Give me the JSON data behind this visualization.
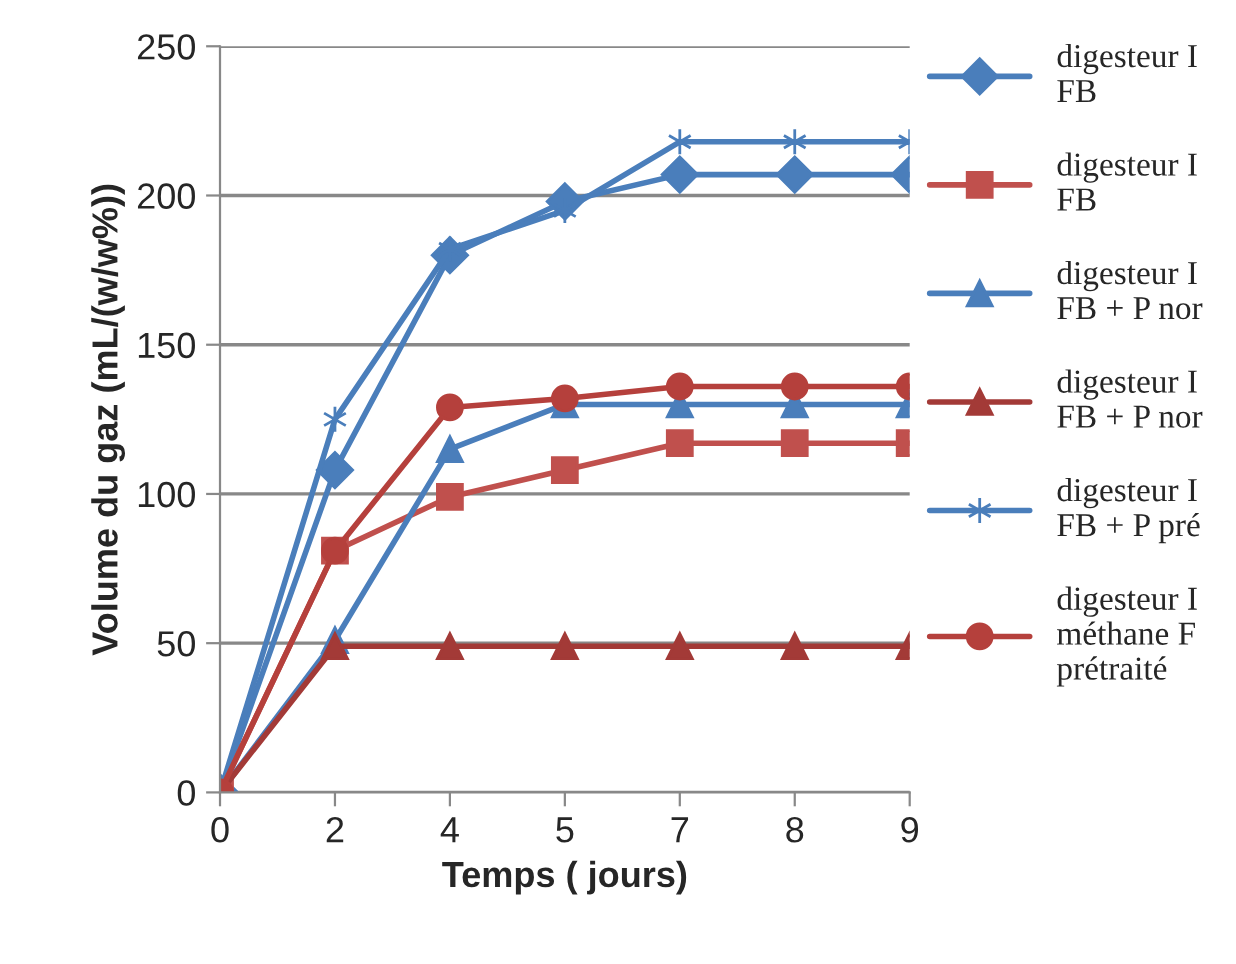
{
  "chart_data": {
    "type": "line",
    "xlabel": "Temps ( jours)",
    "ylabel": "Volume du gaz (mL/(w/w%))",
    "categories": [
      "0",
      "2",
      "4",
      "5",
      "7",
      "8",
      "9"
    ],
    "ylim": [
      0,
      250
    ],
    "yticks": [
      0,
      50,
      100,
      150,
      200,
      250
    ],
    "grid": "y",
    "legend": "right",
    "series": [
      {
        "name": "digesteur I\nFB",
        "color": "#4a7ebb",
        "marker": "diamond",
        "values": [
          0,
          108,
          180,
          198,
          207,
          207,
          207
        ]
      },
      {
        "name": "digesteur I\nFB",
        "color": "#c0504d",
        "marker": "square",
        "values": [
          0,
          81,
          99,
          108,
          117,
          117,
          117
        ]
      },
      {
        "name": "digesteur I\nFB + P nor",
        "color": "#4a7ebb",
        "marker": "triangle",
        "values": [
          0,
          51,
          115,
          130,
          130,
          130,
          130
        ]
      },
      {
        "name": "digesteur I\nFB + P nor",
        "color": "#a33a37",
        "marker": "triangle",
        "values": [
          0,
          49,
          49,
          49,
          49,
          49,
          49
        ]
      },
      {
        "name": "digesteur I\nFB + P pré",
        "color": "#4a7ebb",
        "marker": "cross",
        "values": [
          0,
          125,
          182,
          195,
          218,
          218,
          218
        ]
      },
      {
        "name": "digesteur I\nméthane F\nprétraité",
        "color": "#b5403c",
        "marker": "circle",
        "values": [
          0,
          81,
          129,
          132,
          136,
          136,
          136
        ]
      }
    ]
  }
}
